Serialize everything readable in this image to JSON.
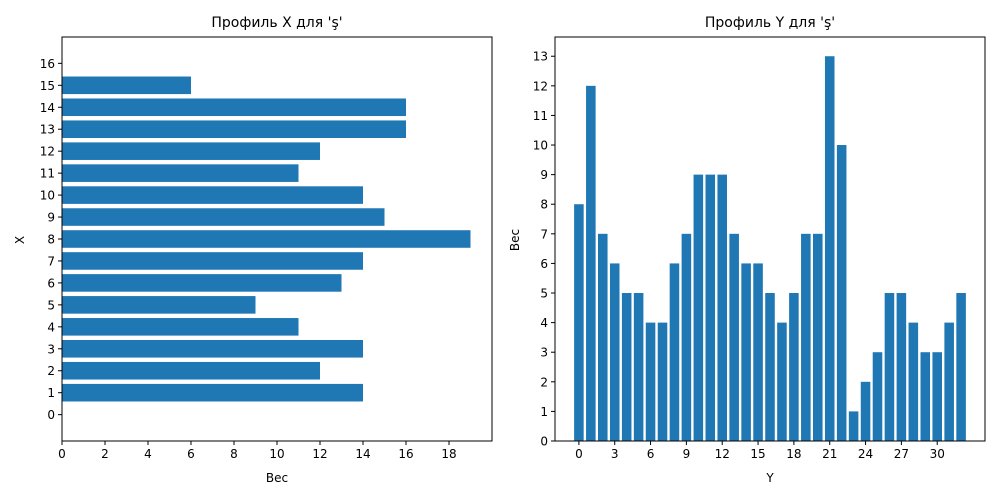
{
  "chart_data": [
    {
      "type": "bar",
      "orientation": "horizontal",
      "title": "Профиль X для 'ş'",
      "xlabel": "Вес",
      "ylabel": "X",
      "categories": [
        0,
        1,
        2,
        3,
        4,
        5,
        6,
        7,
        8,
        9,
        10,
        11,
        12,
        13,
        14,
        15,
        16
      ],
      "values": [
        0,
        14,
        12,
        14,
        11,
        9,
        13,
        14,
        19,
        15,
        14,
        11,
        12,
        16,
        16,
        6,
        0
      ],
      "xlim": [
        0,
        20
      ],
      "xticks": [
        0,
        2,
        4,
        6,
        8,
        10,
        12,
        14,
        16,
        18
      ],
      "yticks": [
        0,
        1,
        2,
        3,
        4,
        5,
        6,
        7,
        8,
        9,
        10,
        11,
        12,
        13,
        14,
        15,
        16
      ],
      "grid": false,
      "color": "#1f77b4"
    },
    {
      "type": "bar",
      "orientation": "vertical",
      "title": "Профиль Y для 'ş'",
      "xlabel": "Y",
      "ylabel": "Вес",
      "categories": [
        0,
        1,
        2,
        3,
        4,
        5,
        6,
        7,
        8,
        9,
        10,
        11,
        12,
        13,
        14,
        15,
        16,
        17,
        18,
        19,
        20,
        21,
        22,
        23,
        24,
        25,
        26,
        27,
        28,
        29,
        30,
        31,
        32
      ],
      "values": [
        8,
        12,
        7,
        6,
        5,
        5,
        4,
        4,
        6,
        7,
        9,
        9,
        9,
        7,
        6,
        6,
        5,
        4,
        5,
        7,
        7,
        13,
        10,
        1,
        2,
        3,
        5,
        5,
        4,
        3,
        3,
        4,
        5
      ],
      "ylim": [
        0,
        13.65
      ],
      "xticks": [
        0,
        3,
        6,
        9,
        12,
        15,
        18,
        21,
        24,
        27,
        30
      ],
      "yticks": [
        0,
        1,
        2,
        3,
        4,
        5,
        6,
        7,
        8,
        9,
        10,
        11,
        12,
        13
      ],
      "grid": false,
      "color": "#1f77b4"
    }
  ]
}
